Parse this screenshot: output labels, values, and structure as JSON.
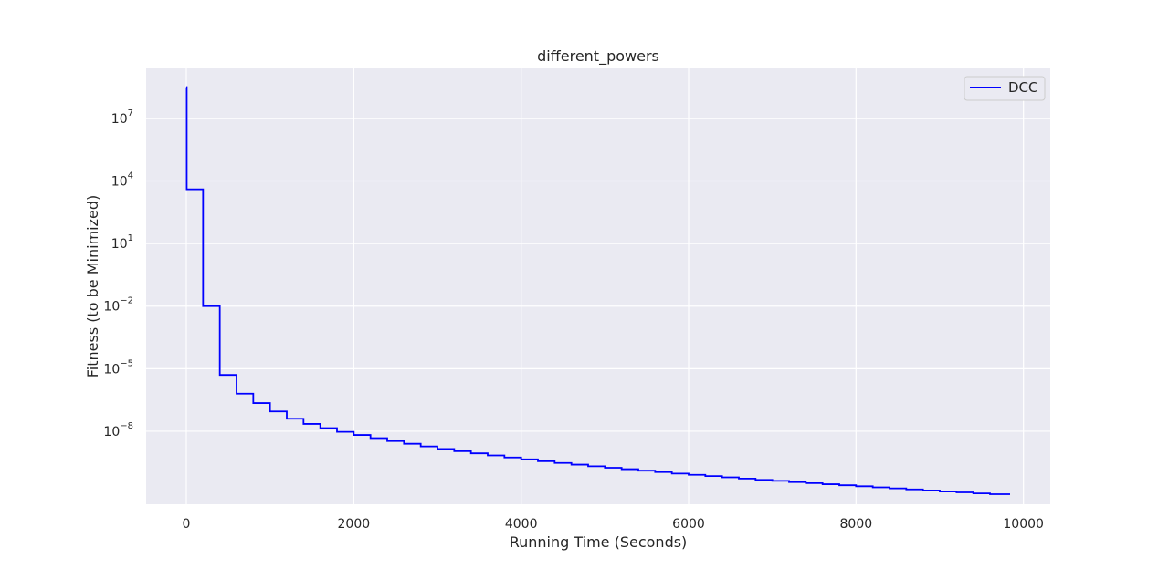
{
  "chart_data": {
    "type": "line",
    "title": "different_powers",
    "xlabel": "Running Time (Seconds)",
    "ylabel": "Fitness (to be Minimized)",
    "xlim": [
      -480,
      10320
    ],
    "xticks": [
      0,
      2000,
      4000,
      6000,
      8000,
      10000
    ],
    "xtick_labels": [
      "0",
      "2000",
      "4000",
      "6000",
      "8000",
      "10000"
    ],
    "yscale": "log",
    "ylim_log10": [
      -11.5,
      9.4
    ],
    "yticks_log10": [
      -8,
      -5,
      -2,
      1,
      4,
      7
    ],
    "ytick_labels": [
      {
        "base": "10",
        "exp": "−8"
      },
      {
        "base": "10",
        "exp": "−5"
      },
      {
        "base": "10",
        "exp": "−2"
      },
      {
        "base": "10",
        "exp": "1"
      },
      {
        "base": "10",
        "exp": "4"
      },
      {
        "base": "10",
        "exp": "7"
      }
    ],
    "grid": true,
    "legend_position": "top-right",
    "series": [
      {
        "name": "DCC",
        "color": "#0000ff",
        "step": "post",
        "x": [
          0,
          5,
          200,
          400,
          600,
          800,
          1000,
          1200,
          1400,
          1600,
          1800,
          2000,
          2200,
          2400,
          2600,
          2800,
          3000,
          3200,
          3400,
          3600,
          3800,
          4000,
          4200,
          4400,
          4600,
          4800,
          5000,
          5200,
          5400,
          5600,
          5800,
          6000,
          6200,
          6400,
          6600,
          6800,
          7000,
          7200,
          7400,
          7600,
          7800,
          8000,
          8200,
          8400,
          8600,
          8800,
          9000,
          9200,
          9400,
          9600,
          9840
        ],
        "y_log10": [
          8.5,
          3.6,
          -2.0,
          -5.3,
          -6.2,
          -6.65,
          -7.05,
          -7.4,
          -7.65,
          -7.85,
          -8.03,
          -8.18,
          -8.33,
          -8.47,
          -8.6,
          -8.73,
          -8.85,
          -8.96,
          -9.06,
          -9.16,
          -9.26,
          -9.35,
          -9.44,
          -9.52,
          -9.6,
          -9.68,
          -9.75,
          -9.82,
          -9.89,
          -9.96,
          -10.03,
          -10.09,
          -10.15,
          -10.21,
          -10.27,
          -10.33,
          -10.38,
          -10.44,
          -10.49,
          -10.54,
          -10.59,
          -10.64,
          -10.69,
          -10.74,
          -10.79,
          -10.84,
          -10.89,
          -10.93,
          -10.98,
          -11.02,
          -11.02
        ]
      }
    ]
  }
}
